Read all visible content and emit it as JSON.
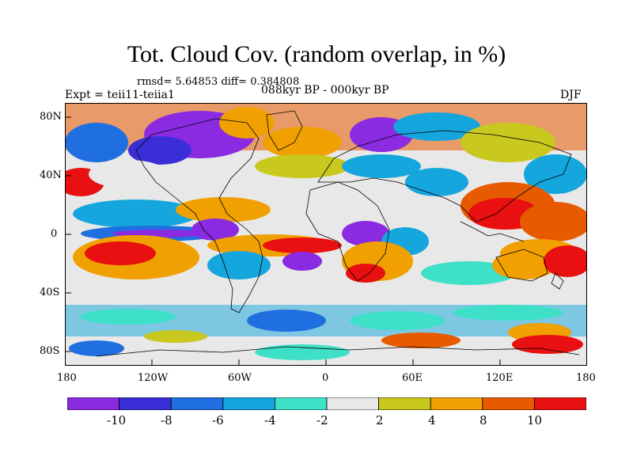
{
  "title": "Tot. Cloud Cov. (random overlap, in %)",
  "stats": "rmsd= 5.64853  diff= 0.384808",
  "expt": "Expt = teii11-teiia1",
  "period": "088kyr BP - 000kyr BP",
  "season": "DJF",
  "lat_ticks": [
    "80N",
    "40N",
    "0",
    "40S",
    "80S"
  ],
  "lon_ticks": [
    "180",
    "120W",
    "60W",
    "0",
    "60E",
    "120E",
    "180"
  ],
  "colorbar": {
    "labels": [
      "-10",
      "-8",
      "-6",
      "-4",
      "-2",
      "2",
      "4",
      "8",
      "10"
    ],
    "colors": [
      "#8a2be2",
      "#3a2fd6",
      "#1f6fe0",
      "#14a6dd",
      "#3ee0c8",
      "#e8e8e8",
      "#c8c81e",
      "#f0a000",
      "#e85a00",
      "#e81010"
    ]
  }
}
